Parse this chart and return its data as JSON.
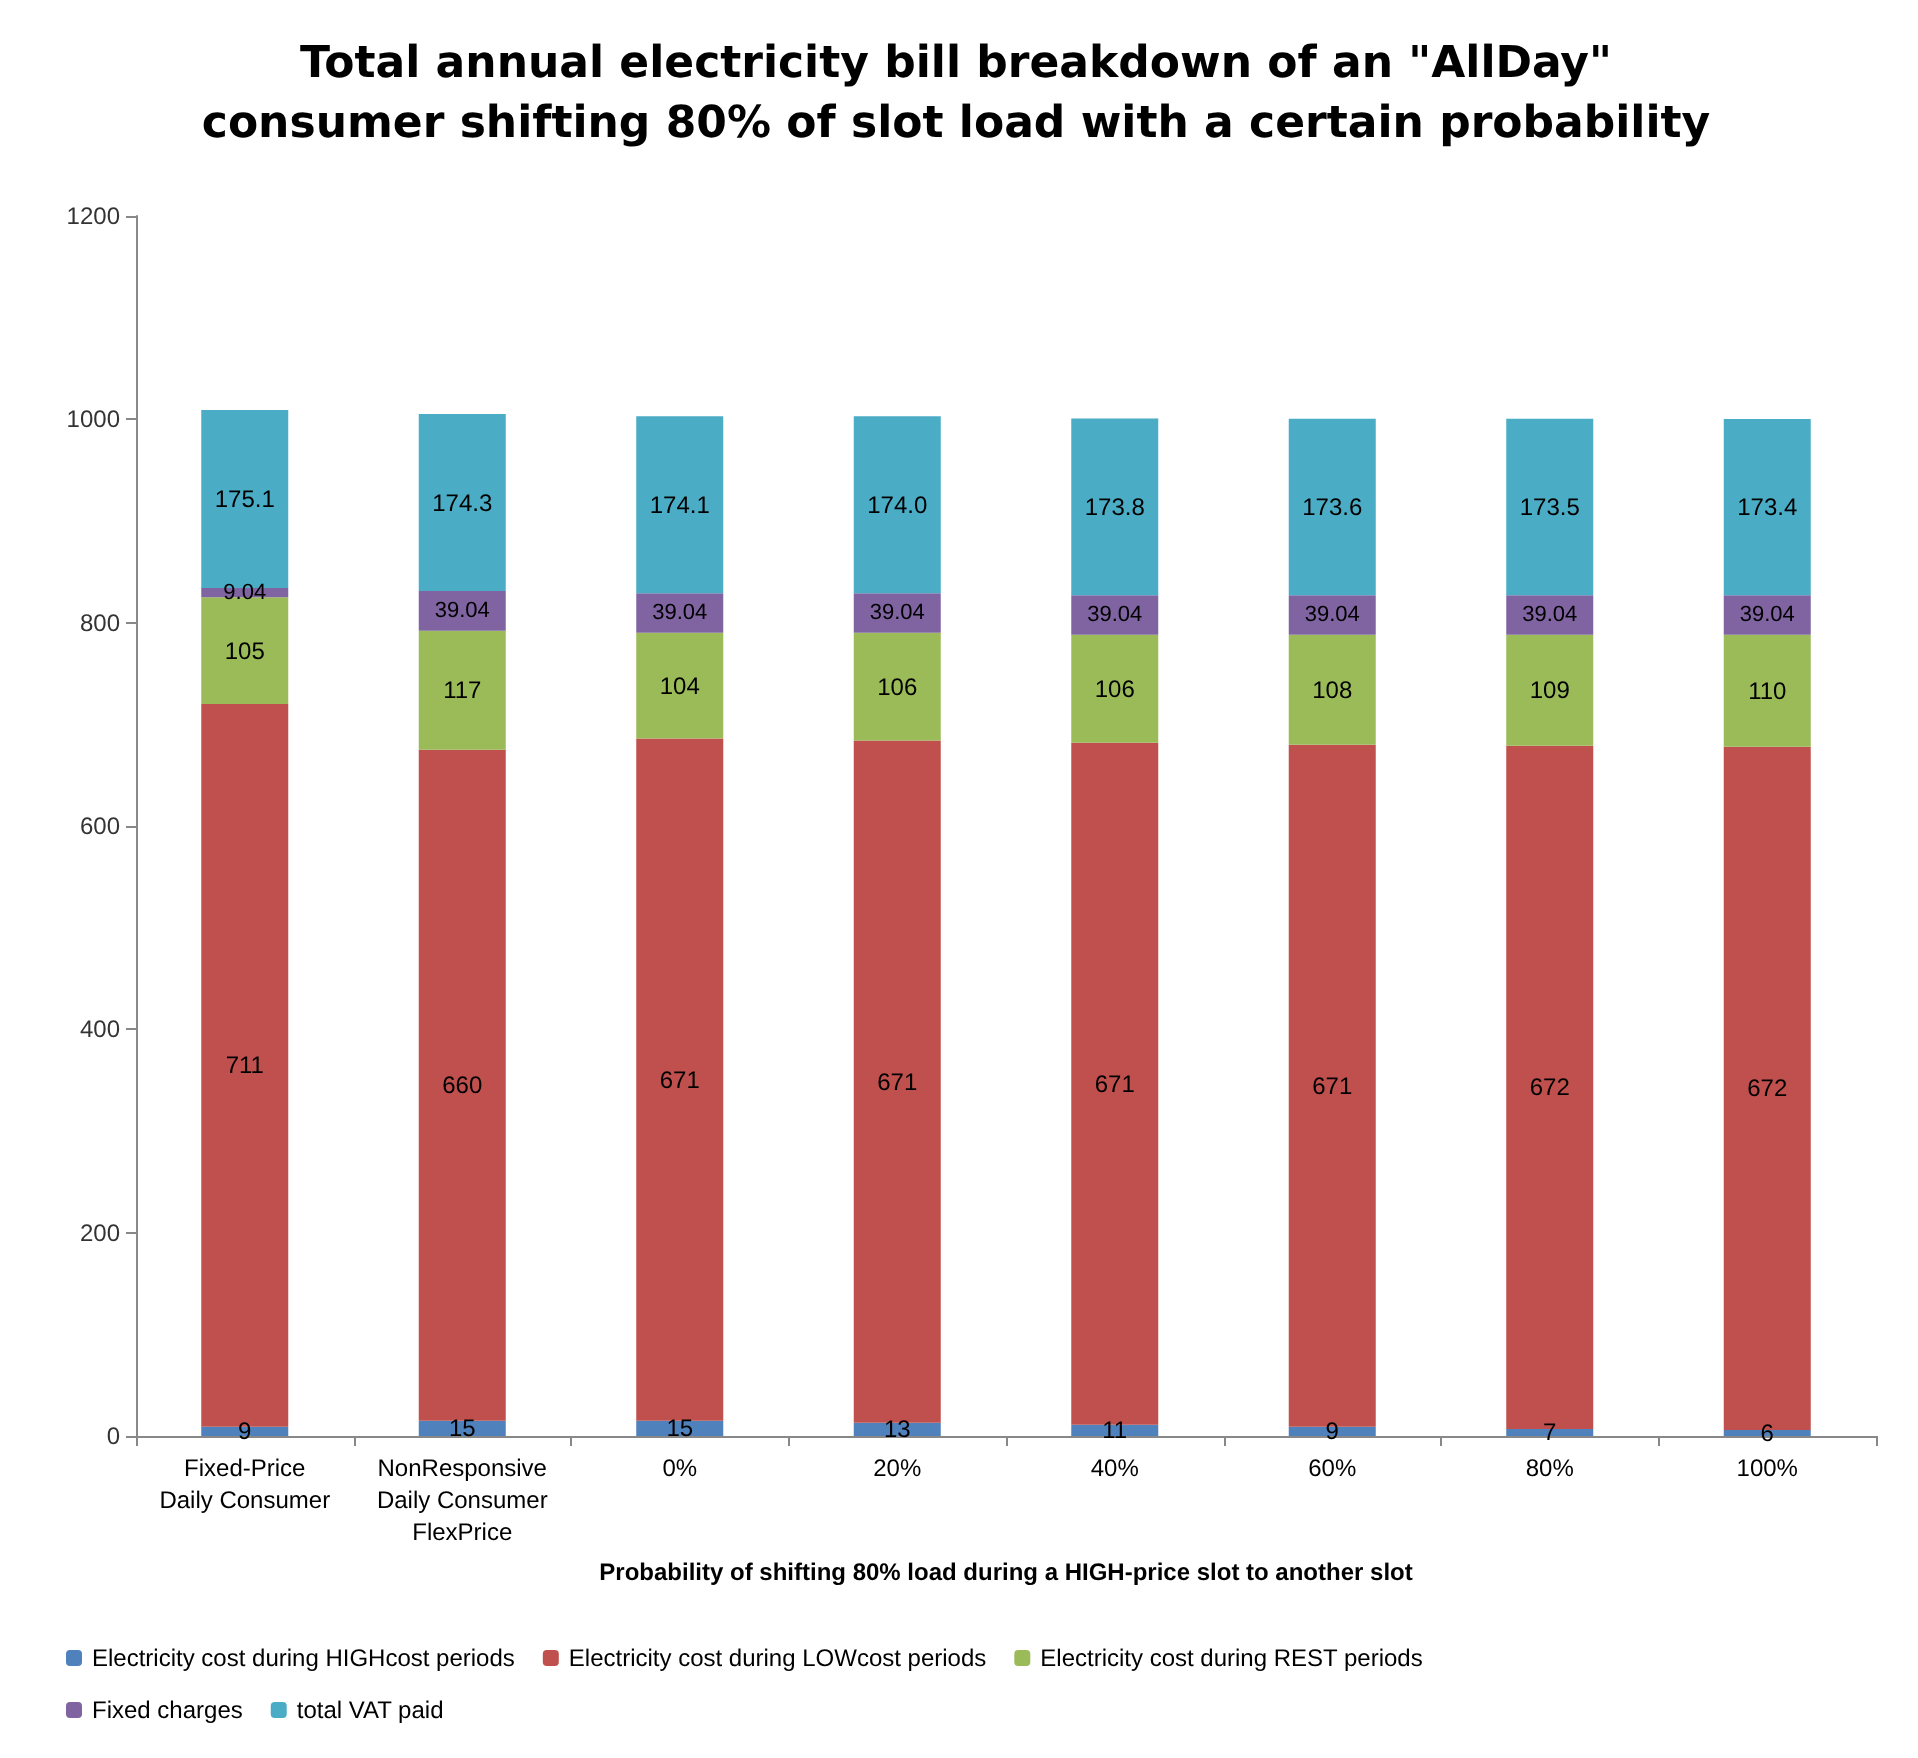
{
  "chart_data": {
    "type": "bar",
    "stacked": true,
    "title": "Total annual electricity bill breakdown of an \"AllDay\"\nconsumer shifting 80% of slot load with a certain probability",
    "xlabel": "Probability of shifting 80% load during a HIGH-price slot to another slot",
    "categories": [
      "Fixed-Price\nDaily Consumer",
      "NonResponsive\nDaily Consumer\nFlexPrice",
      "0%",
      "20%",
      "40%",
      "60%",
      "80%",
      "100%"
    ],
    "ylim": [
      0,
      1200
    ],
    "yticks": [
      0,
      200,
      400,
      600,
      800,
      1000,
      1200
    ],
    "grid": false,
    "legend": "bottom",
    "data_labels": true,
    "series": [
      {
        "name": "Electricity cost during HIGHcost periods",
        "color": "#4f81bd",
        "values": [
          9,
          15,
          15,
          13,
          11,
          9,
          7,
          6
        ],
        "value_labels": [
          "9",
          "15",
          "15",
          "13",
          "11",
          "9",
          "7",
          "6"
        ]
      },
      {
        "name": "Electricity cost during LOWcost periods",
        "color": "#c0504d",
        "values": [
          711,
          660,
          671,
          671,
          671,
          671,
          672,
          672
        ],
        "value_labels": [
          "711",
          "660",
          "671",
          "671",
          "671",
          "671",
          "672",
          "672"
        ]
      },
      {
        "name": "Electricity cost during REST periods",
        "color": "#9bbb59",
        "values": [
          105,
          117,
          104,
          106,
          106,
          108,
          109,
          110
        ],
        "value_labels": [
          "105",
          "117",
          "104",
          "106",
          "106",
          "108",
          "109",
          "110"
        ]
      },
      {
        "name": "Fixed charges",
        "color": "#8064a2",
        "values": [
          9.04,
          39.04,
          39.04,
          39.04,
          39.04,
          39.04,
          39.04,
          39.04
        ],
        "value_labels": [
          "9.04",
          "39.04",
          "39.04",
          "39.04",
          "39.04",
          "39.04",
          "39.04",
          "39.04"
        ]
      },
      {
        "name": "total VAT paid",
        "color": "#4bacc6",
        "values": [
          175.1,
          174.3,
          174.1,
          174.0,
          173.8,
          173.6,
          173.5,
          173.4
        ],
        "value_labels": [
          "175.1",
          "174.3",
          "174.1",
          "174.0",
          "173.8",
          "173.6",
          "173.5",
          "173.4"
        ]
      }
    ]
  }
}
